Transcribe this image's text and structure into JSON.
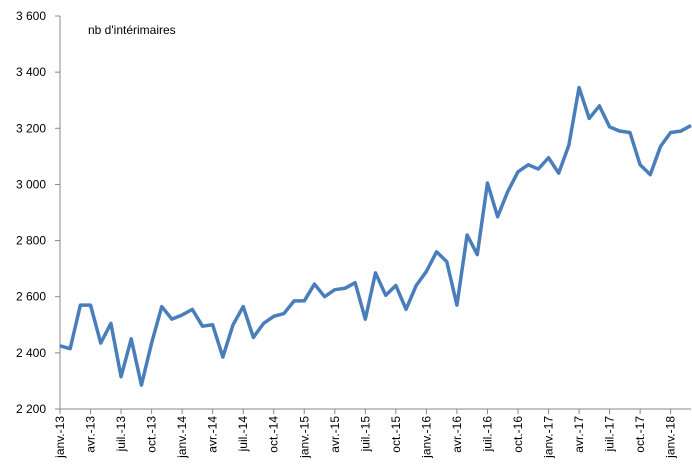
{
  "chart_data": {
    "type": "line",
    "categories": [
      "janv.-13",
      null,
      null,
      "avr.-13",
      null,
      null,
      "juil.-13",
      null,
      null,
      "oct.-13",
      null,
      null,
      "janv.-14",
      null,
      null,
      "avr.-14",
      null,
      null,
      "juil.-14",
      null,
      null,
      "oct.-14",
      null,
      null,
      "janv.-15",
      null,
      null,
      "avr.-15",
      null,
      null,
      "juil.-15",
      null,
      null,
      "oct.-15",
      null,
      null,
      "janv.-16",
      null,
      null,
      "avr.-16",
      null,
      null,
      "juil.-16",
      null,
      null,
      "oct.-16",
      null,
      null,
      "janv.-17",
      null,
      null,
      "avr.-17",
      null,
      null,
      "juil.-17",
      null,
      null,
      "oct.-17",
      null,
      null,
      "janv.-18",
      null,
      null
    ],
    "series": [
      {
        "name": "nb d'intérimaires",
        "color": "#4a7ebb",
        "values": [
          2425,
          2415,
          2570,
          2570,
          2435,
          2505,
          2315,
          2450,
          2285,
          2435,
          2565,
          2520,
          2535,
          2555,
          2495,
          2500,
          2385,
          2500,
          2565,
          2455,
          2505,
          2530,
          2540,
          2585,
          2585,
          2645,
          2600,
          2625,
          2630,
          2650,
          2520,
          2685,
          2605,
          2640,
          2555,
          2640,
          2690,
          2760,
          2725,
          2570,
          2820,
          2750,
          3005,
          2885,
          2975,
          3045,
          3070,
          3055,
          3095,
          3040,
          3140,
          3345,
          3235,
          3280,
          3205,
          3190,
          3185,
          3070,
          3035,
          3135,
          3185,
          3190,
          3210
        ]
      }
    ],
    "ylim": [
      2200,
      3600
    ],
    "yticks": [
      {
        "value": 2200,
        "label": "2 200"
      },
      {
        "value": 2400,
        "label": "2 400"
      },
      {
        "value": 2600,
        "label": "2 600"
      },
      {
        "value": 2800,
        "label": "2 800"
      },
      {
        "value": 3000,
        "label": "3 000"
      },
      {
        "value": 3200,
        "label": "3 200"
      },
      {
        "value": 3400,
        "label": "3 400"
      },
      {
        "value": 3600,
        "label": "3 600"
      }
    ],
    "grid": false
  }
}
